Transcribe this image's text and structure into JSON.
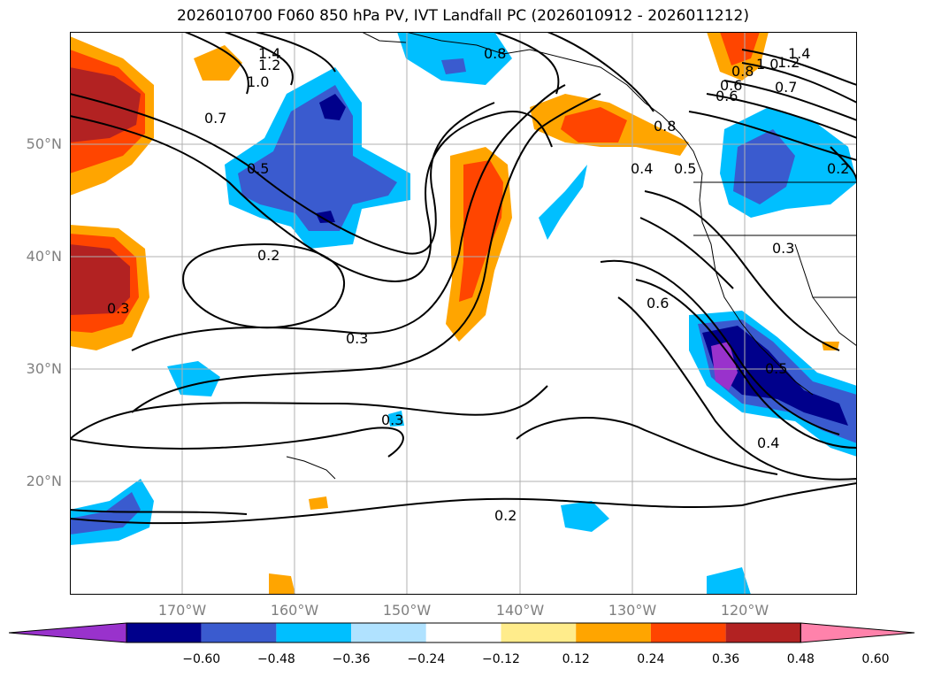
{
  "title": "2026010700 F060 850 hPa PV, IVT Landfall PC (2026010912 - 2026011212)",
  "lat_labels": [
    "50°N",
    "40°N",
    "30°N",
    "20°N"
  ],
  "lon_labels": [
    "170°W",
    "160°W",
    "150°W",
    "140°W",
    "130°W",
    "120°W"
  ],
  "colorbar": {
    "ticks": [
      "−0.60",
      "−0.48",
      "−0.36",
      "−0.24",
      "−0.12",
      "0.12",
      "0.24",
      "0.36",
      "0.48",
      "0.60"
    ],
    "colors": [
      "#9932cc",
      "#00008b",
      "#3a5bcf",
      "#00bfff",
      "#b0e2ff",
      "#ffffff",
      "#ffec8b",
      "#ffa500",
      "#ff4500",
      "#b22222",
      "#ff82ab"
    ]
  },
  "contour_labels": [
    "1.4",
    "1.2",
    "1.0",
    "0.7",
    "0.5",
    "0.8",
    "0.2",
    "0.3",
    "0.3",
    "0.3",
    "0.4",
    "0.5",
    "0.6",
    "0.2",
    "0.4",
    "0.5",
    "0.8",
    "1.0",
    "1.2",
    "1.4",
    "0.6",
    "0.7",
    "0.3",
    "0.2",
    "0.8",
    "0.6"
  ]
}
